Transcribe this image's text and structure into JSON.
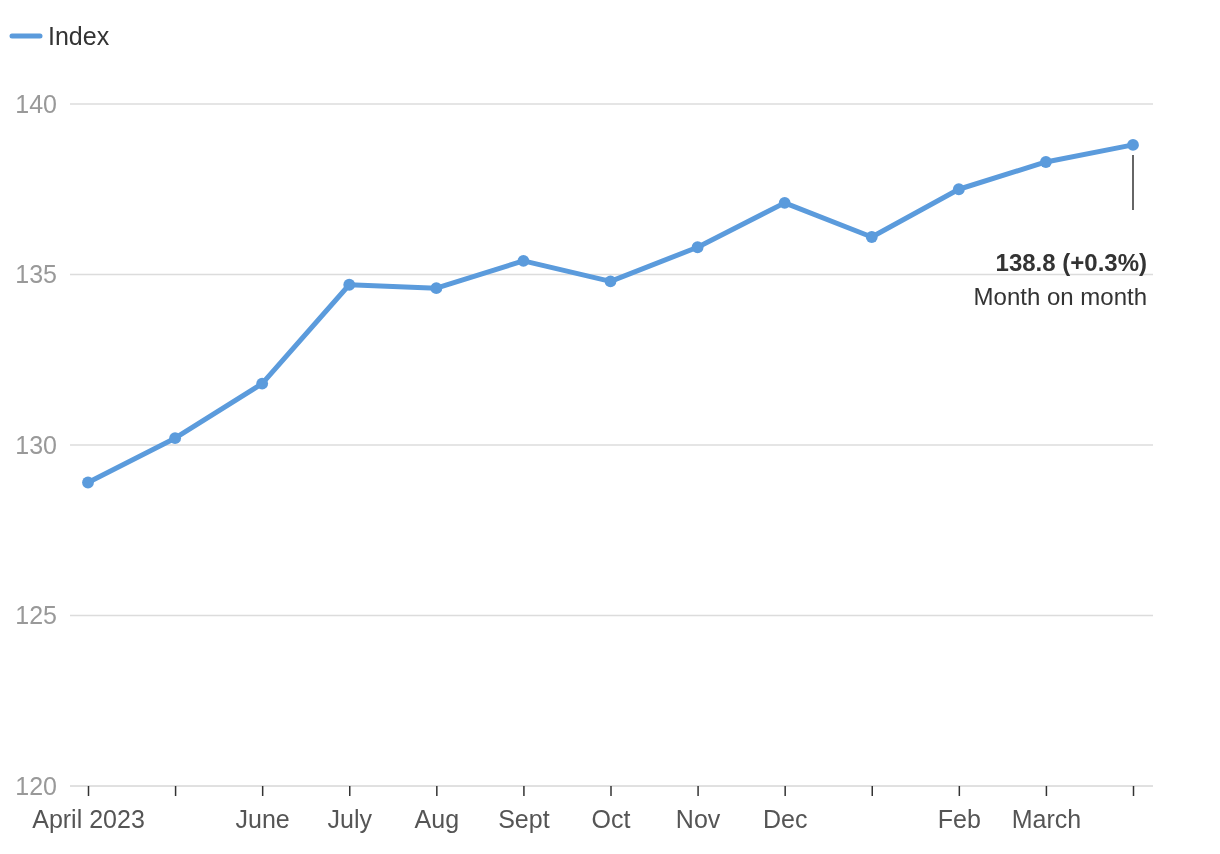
{
  "chart_data": {
    "type": "line",
    "categories": [
      "April 2023",
      null,
      "June",
      "July",
      "Aug",
      "Sept",
      "Oct",
      "Nov",
      "Dec",
      null,
      "Feb",
      "March",
      null
    ],
    "series": [
      {
        "name": "Index",
        "color": "#5b9bdc",
        "values": [
          128.9,
          130.2,
          131.8,
          134.7,
          134.6,
          135.4,
          134.8,
          135.8,
          137.1,
          136.1,
          137.5,
          138.3,
          138.8
        ]
      }
    ],
    "ylim": [
      120,
      140
    ],
    "yticks": [
      120,
      125,
      130,
      135,
      140
    ],
    "grid": "y",
    "legend": "top left",
    "marker": "circle",
    "line_style": "solid",
    "annotations": [
      "138.8 (+0.3%)",
      "Month on month"
    ]
  }
}
